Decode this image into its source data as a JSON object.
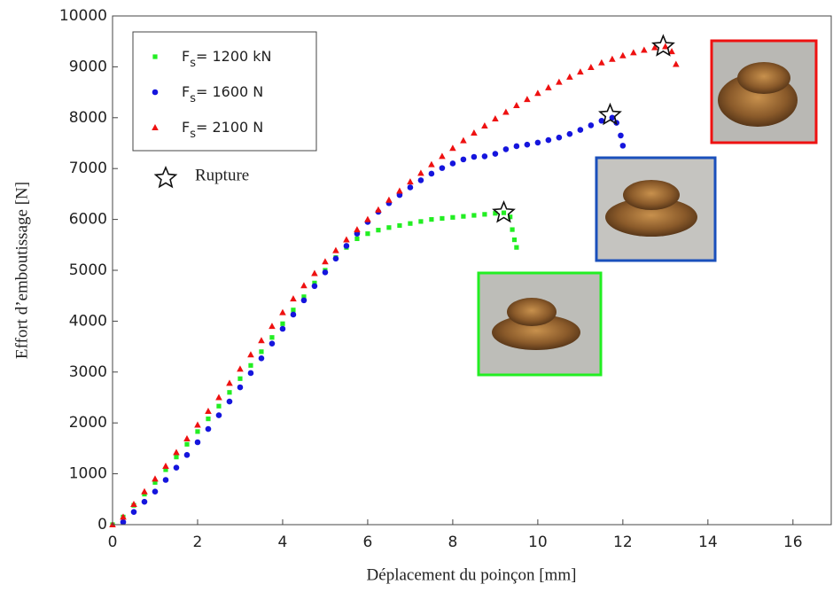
{
  "chart_data": {
    "type": "scatter",
    "x_label": "Déplacement du poinçon [mm]",
    "y_label": "Effort d’emboutissage [N]",
    "xlim": [
      0,
      16.9
    ],
    "ylim": [
      0,
      10000
    ],
    "xticks": [
      0,
      2,
      4,
      6,
      8,
      10,
      12,
      14,
      16
    ],
    "yticks": [
      0,
      1000,
      2000,
      3000,
      4000,
      5000,
      6000,
      7000,
      8000,
      9000,
      10000
    ],
    "legend": "upper left",
    "series": [
      {
        "name": "Fs= 1200 kN",
        "color": "#22ee22",
        "marker": "square",
        "x": [
          0,
          0.25,
          0.5,
          0.75,
          1,
          1.25,
          1.5,
          1.75,
          2,
          2.25,
          2.5,
          2.75,
          3,
          3.25,
          3.5,
          3.75,
          4,
          4.25,
          4.5,
          4.75,
          5,
          5.25,
          5.5,
          5.75,
          6,
          6.25,
          6.5,
          6.75,
          7,
          7.25,
          7.5,
          7.75,
          8,
          8.25,
          8.5,
          8.75,
          9,
          9.2,
          9.35,
          9.4,
          9.45,
          9.5
        ],
        "values": [
          0,
          150,
          380,
          600,
          830,
          1080,
          1330,
          1580,
          1830,
          2080,
          2330,
          2600,
          2870,
          3130,
          3400,
          3680,
          3950,
          4220,
          4480,
          4750,
          5000,
          5250,
          5450,
          5620,
          5720,
          5790,
          5840,
          5880,
          5920,
          5960,
          6000,
          6020,
          6040,
          6060,
          6080,
          6100,
          6120,
          6130,
          6050,
          5800,
          5600,
          5450
        ]
      },
      {
        "name": "Fs= 1600 N",
        "color": "#1515dd",
        "marker": "circle",
        "x": [
          0.25,
          0.5,
          0.75,
          1,
          1.25,
          1.5,
          1.75,
          2,
          2.25,
          2.5,
          2.75,
          3,
          3.25,
          3.5,
          3.75,
          4,
          4.25,
          4.5,
          4.75,
          5,
          5.25,
          5.5,
          5.75,
          6,
          6.25,
          6.5,
          6.75,
          7,
          7.25,
          7.5,
          7.75,
          8,
          8.25,
          8.5,
          8.75,
          9,
          9.25,
          9.5,
          9.75,
          10,
          10.25,
          10.5,
          10.75,
          11,
          11.25,
          11.5,
          11.75,
          11.85,
          11.95,
          12
        ],
        "values": [
          50,
          250,
          450,
          650,
          880,
          1120,
          1370,
          1620,
          1880,
          2150,
          2420,
          2700,
          2980,
          3270,
          3560,
          3850,
          4130,
          4410,
          4690,
          4960,
          5230,
          5480,
          5720,
          5950,
          6150,
          6320,
          6480,
          6630,
          6770,
          6900,
          7010,
          7100,
          7180,
          7230,
          7240,
          7290,
          7380,
          7440,
          7470,
          7510,
          7560,
          7610,
          7680,
          7760,
          7850,
          7940,
          8000,
          7900,
          7650,
          7450
        ]
      },
      {
        "name": "Fs= 2100 N",
        "color": "#ee1111",
        "marker": "triangle",
        "x": [
          0,
          0.25,
          0.5,
          0.75,
          1,
          1.25,
          1.5,
          1.75,
          2,
          2.25,
          2.5,
          2.75,
          3,
          3.25,
          3.5,
          3.75,
          4,
          4.25,
          4.5,
          4.75,
          5,
          5.25,
          5.5,
          5.75,
          6,
          6.25,
          6.5,
          6.75,
          7,
          7.25,
          7.5,
          7.75,
          8,
          8.25,
          8.5,
          8.75,
          9,
          9.25,
          9.5,
          9.75,
          10,
          10.25,
          10.5,
          10.75,
          11,
          11.25,
          11.5,
          11.75,
          12,
          12.25,
          12.5,
          12.75,
          13,
          13.15,
          13.25
        ],
        "values": [
          0,
          150,
          400,
          650,
          900,
          1150,
          1420,
          1690,
          1960,
          2230,
          2500,
          2780,
          3060,
          3340,
          3620,
          3900,
          4170,
          4440,
          4700,
          4940,
          5170,
          5390,
          5600,
          5800,
          6000,
          6190,
          6380,
          6560,
          6740,
          6910,
          7080,
          7240,
          7400,
          7550,
          7700,
          7840,
          7980,
          8110,
          8240,
          8360,
          8480,
          8590,
          8700,
          8800,
          8900,
          8990,
          9080,
          9150,
          9220,
          9280,
          9330,
          9380,
          9400,
          9300,
          9050
        ]
      }
    ],
    "rupture": {
      "name": "Rupture",
      "x": [
        9.2,
        11.7,
        12.95
      ],
      "values": [
        6130,
        8050,
        9400
      ]
    }
  }
}
